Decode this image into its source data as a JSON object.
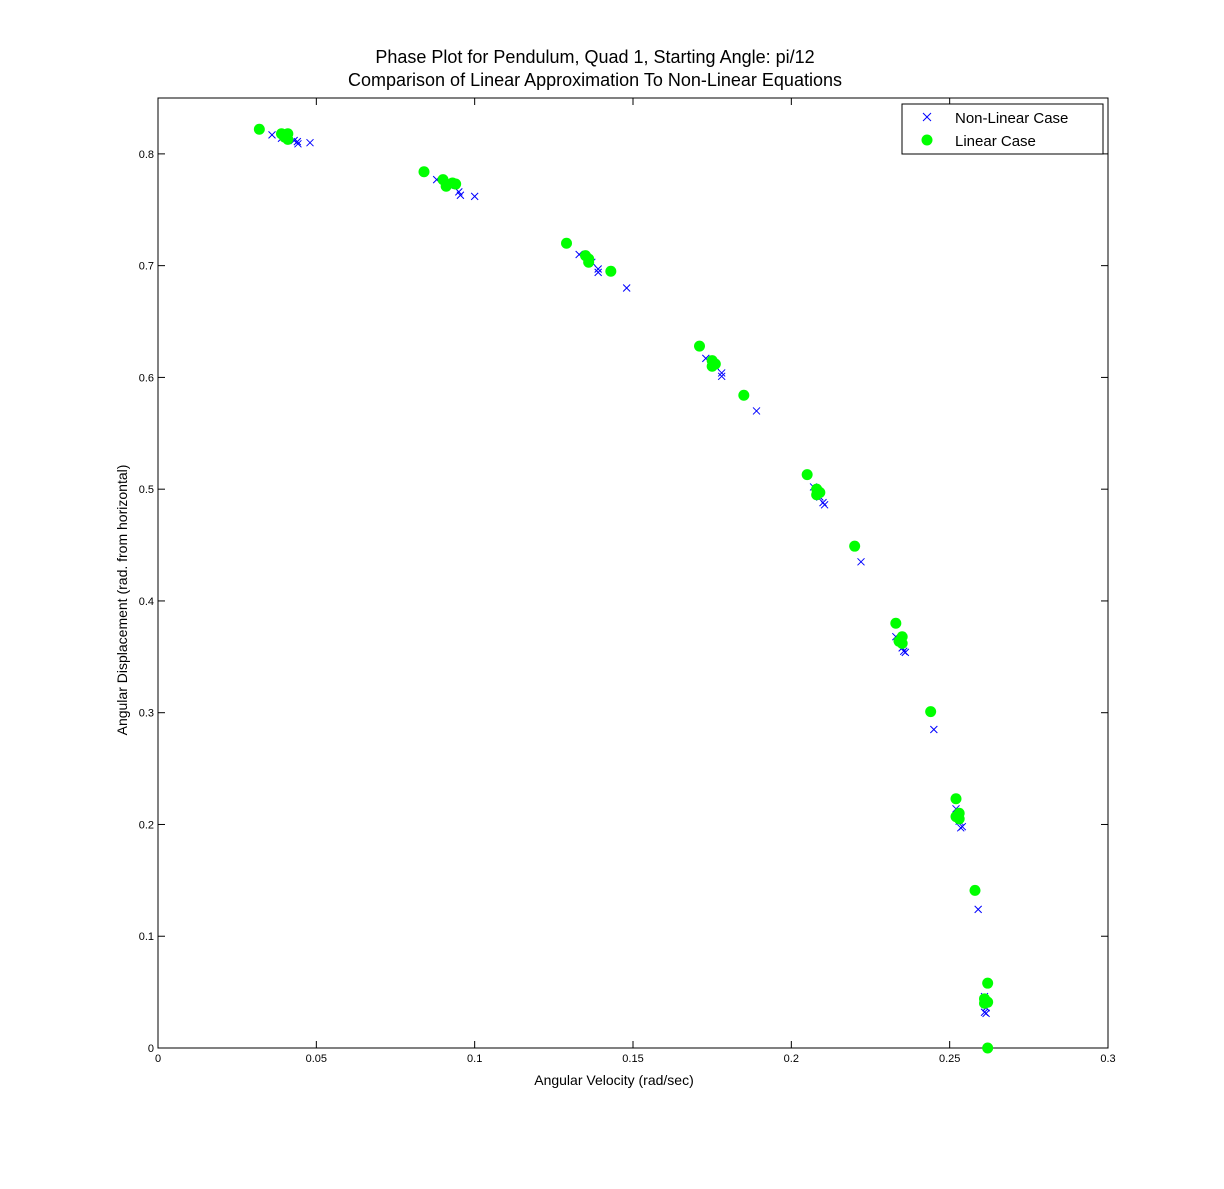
{
  "chart_data": {
    "type": "scatter",
    "title": "Phase Plot for Pendulum, Quad 1, Starting Angle:  pi/12",
    "subtitle": "Comparison of Linear Approximation To Non-Linear Equations",
    "xlabel": "Angular Velocity (rad/sec)",
    "ylabel": "Angular Displacement (rad. from horizontal)",
    "xlim": [
      0,
      0.3
    ],
    "ylim": [
      0,
      0.85
    ],
    "xticks": [
      0,
      0.05,
      0.1,
      0.15,
      0.2,
      0.25,
      0.3
    ],
    "xtick_labels": [
      "0",
      "0.05",
      "0.1",
      "0.15",
      "0.2",
      "0.25",
      "0.3"
    ],
    "yticks": [
      0,
      0.1,
      0.2,
      0.3,
      0.4,
      0.5,
      0.6,
      0.7,
      0.8
    ],
    "ytick_labels": [
      "0",
      "0.1",
      "0.2",
      "0.3",
      "0.4",
      "0.5",
      "0.6",
      "0.7",
      "0.8"
    ],
    "grid": false,
    "legend_position": "top-right",
    "series": [
      {
        "name": "Non-Linear Case",
        "marker": "x",
        "color": "#0000ff",
        "points": [
          [
            0.036,
            0.817
          ],
          [
            0.039,
            0.814
          ],
          [
            0.043,
            0.812
          ],
          [
            0.044,
            0.811
          ],
          [
            0.0442,
            0.809
          ],
          [
            0.048,
            0.81
          ],
          [
            0.088,
            0.777
          ],
          [
            0.092,
            0.772
          ],
          [
            0.095,
            0.766
          ],
          [
            0.0955,
            0.763
          ],
          [
            0.1,
            0.762
          ],
          [
            0.133,
            0.71
          ],
          [
            0.137,
            0.703
          ],
          [
            0.139,
            0.697
          ],
          [
            0.139,
            0.694
          ],
          [
            0.148,
            0.68
          ],
          [
            0.173,
            0.617
          ],
          [
            0.176,
            0.61
          ],
          [
            0.178,
            0.604
          ],
          [
            0.178,
            0.601
          ],
          [
            0.189,
            0.57
          ],
          [
            0.207,
            0.502
          ],
          [
            0.209,
            0.493
          ],
          [
            0.21,
            0.488
          ],
          [
            0.2105,
            0.486
          ],
          [
            0.222,
            0.435
          ],
          [
            0.233,
            0.368
          ],
          [
            0.235,
            0.358
          ],
          [
            0.2355,
            0.355
          ],
          [
            0.236,
            0.354
          ],
          [
            0.245,
            0.285
          ],
          [
            0.252,
            0.214
          ],
          [
            0.253,
            0.203
          ],
          [
            0.254,
            0.198
          ],
          [
            0.2535,
            0.197
          ],
          [
            0.259,
            0.124
          ],
          [
            0.261,
            0.046
          ],
          [
            0.2615,
            0.036
          ],
          [
            0.261,
            0.032
          ],
          [
            0.2615,
            0.031
          ]
        ]
      },
      {
        "name": "Linear Case",
        "marker": "o",
        "color": "#00ff00",
        "points": [
          [
            0.032,
            0.822
          ],
          [
            0.039,
            0.818
          ],
          [
            0.041,
            0.818
          ],
          [
            0.04,
            0.815
          ],
          [
            0.041,
            0.813
          ],
          [
            0.084,
            0.784
          ],
          [
            0.09,
            0.777
          ],
          [
            0.091,
            0.771
          ],
          [
            0.093,
            0.774
          ],
          [
            0.094,
            0.773
          ],
          [
            0.129,
            0.72
          ],
          [
            0.135,
            0.709
          ],
          [
            0.136,
            0.706
          ],
          [
            0.136,
            0.703
          ],
          [
            0.143,
            0.695
          ],
          [
            0.171,
            0.628
          ],
          [
            0.175,
            0.615
          ],
          [
            0.176,
            0.612
          ],
          [
            0.175,
            0.61
          ],
          [
            0.185,
            0.584
          ],
          [
            0.205,
            0.513
          ],
          [
            0.208,
            0.5
          ],
          [
            0.209,
            0.497
          ],
          [
            0.208,
            0.495
          ],
          [
            0.22,
            0.449
          ],
          [
            0.233,
            0.38
          ],
          [
            0.235,
            0.368
          ],
          [
            0.234,
            0.364
          ],
          [
            0.235,
            0.362
          ],
          [
            0.244,
            0.301
          ],
          [
            0.252,
            0.223
          ],
          [
            0.253,
            0.21
          ],
          [
            0.252,
            0.207
          ],
          [
            0.253,
            0.205
          ],
          [
            0.258,
            0.141
          ],
          [
            0.262,
            0.058
          ],
          [
            0.261,
            0.044
          ],
          [
            0.262,
            0.041
          ],
          [
            0.261,
            0.04
          ],
          [
            0.262,
            0.0
          ]
        ]
      }
    ]
  }
}
